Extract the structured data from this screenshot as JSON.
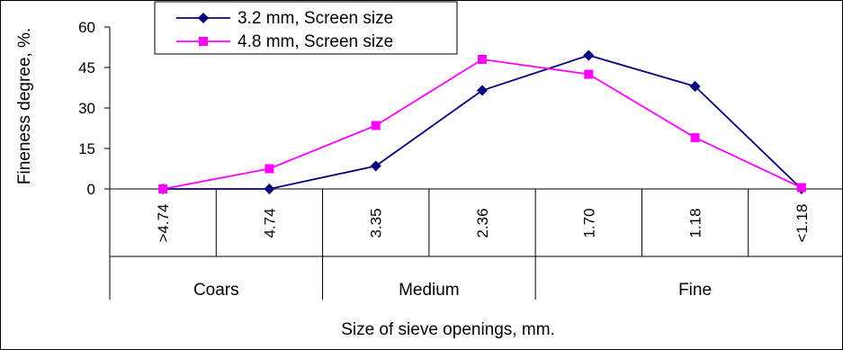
{
  "chart_data": {
    "type": "line",
    "categories": [
      ">4.74",
      "4.74",
      "3.35",
      "2.36",
      "1.70",
      "1.18",
      "<1.18"
    ],
    "groups": [
      {
        "label": "Coars",
        "span": [
          0,
          2
        ]
      },
      {
        "label": "Medium",
        "span": [
          2,
          4
        ]
      },
      {
        "label": "Fine",
        "span": [
          4,
          7
        ]
      }
    ],
    "series": [
      {
        "name": "3.2 mm, Screen size",
        "values": [
          0,
          0,
          8.5,
          36.5,
          49.5,
          38,
          0
        ],
        "color": "#000080",
        "marker": "diamond"
      },
      {
        "name": "4.8 mm, Screen size",
        "values": [
          0,
          7.5,
          23.5,
          48,
          42.5,
          19,
          0.5
        ],
        "color": "#ff00ff",
        "marker": "square"
      }
    ],
    "ylabel": "Fineness degree, %.",
    "xlabel": "Size of sieve openings, mm.",
    "ylim": [
      0,
      60
    ],
    "yticks": [
      0,
      15,
      30,
      45,
      60
    ],
    "legend": "top-left",
    "grid": false
  }
}
